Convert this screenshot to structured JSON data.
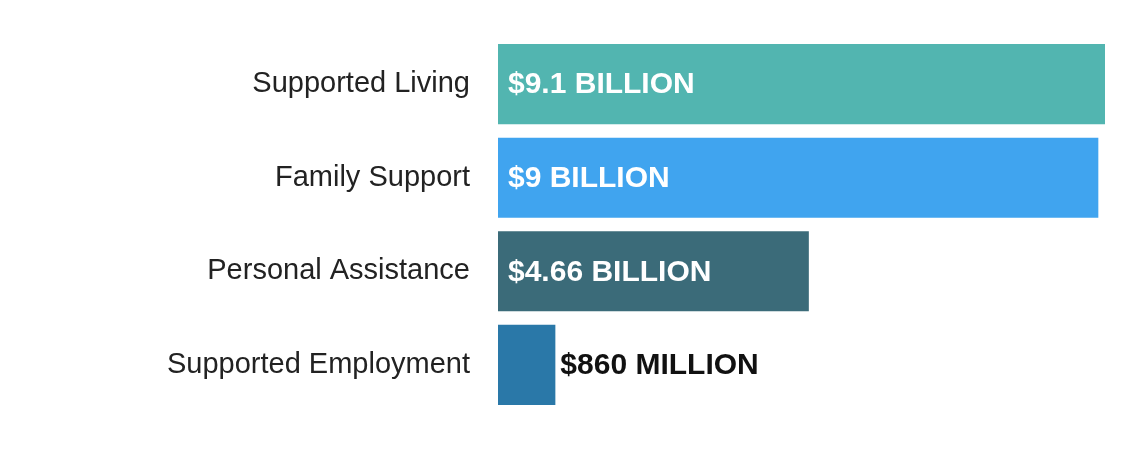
{
  "chart_data": {
    "type": "bar",
    "orientation": "horizontal",
    "categories": [
      "Supported Living",
      "Family Support",
      "Personal Assistance",
      "Supported Employment"
    ],
    "values": [
      9100000000,
      9000000000,
      4660000000,
      860000000
    ],
    "value_labels": [
      "$9.1 BILLION",
      "$9 BILLION",
      "$4.66 BILLION",
      "$860 MILLION"
    ],
    "colors": [
      "#52b5b0",
      "#40a4ef",
      "#3b6b79",
      "#2a78a8"
    ],
    "xlim": [
      0,
      9100000000
    ],
    "grid": false,
    "data_labels": true,
    "tick_labels": "y"
  }
}
